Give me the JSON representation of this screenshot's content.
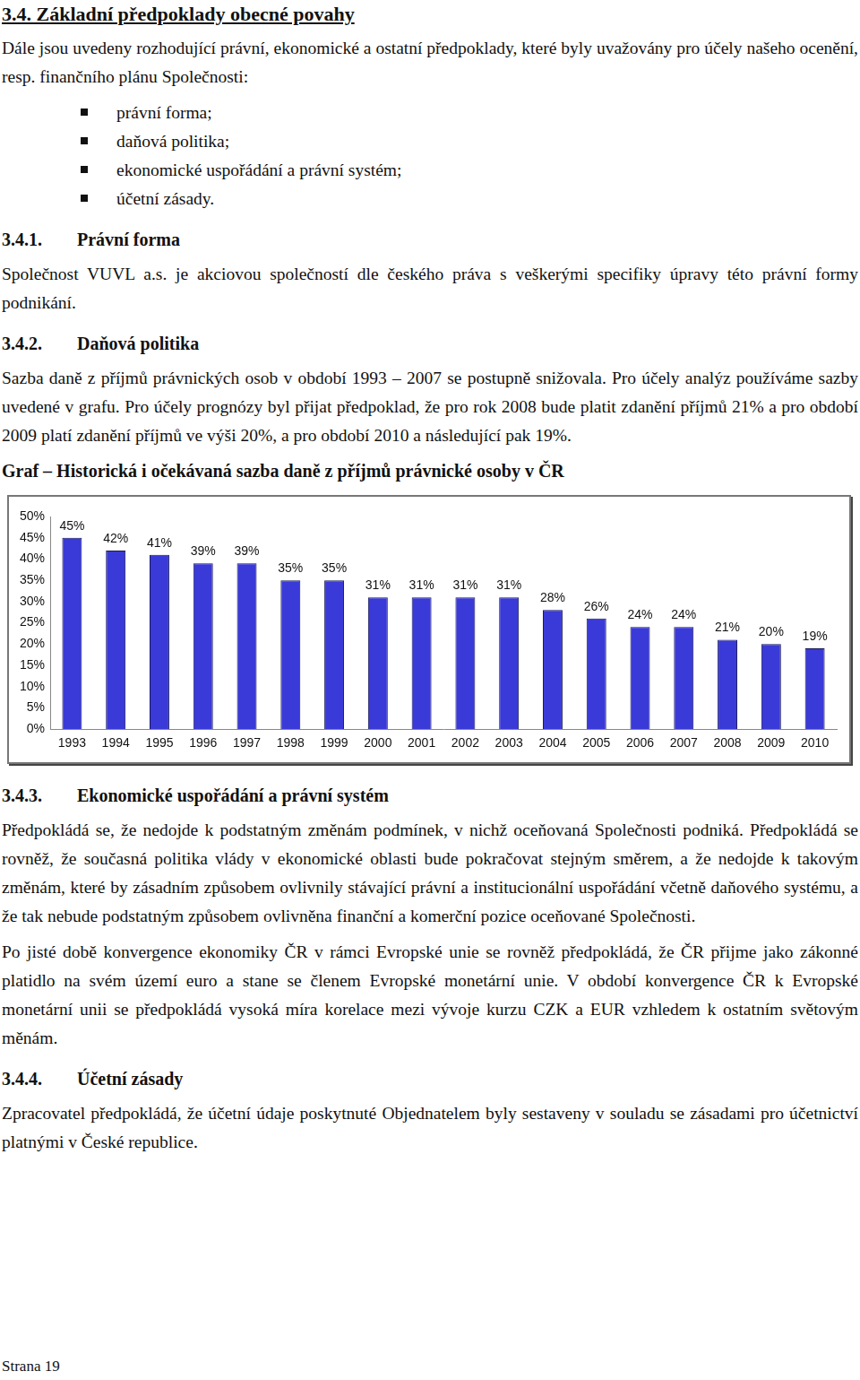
{
  "document": {
    "heading": "3.4. Základní předpoklady obecné povahy",
    "intro": "Dále jsou uvedeny rozhodující právní, ekonomické a ostatní předpoklady, které byly uvažovány pro účely našeho ocenění, resp. finančního plánu Společnosti:",
    "bullets": [
      "právní forma;",
      "daňová politika;",
      "ekonomické uspořádání a právní systém;",
      "účetní zásady."
    ],
    "sections": [
      {
        "number": "3.4.1.",
        "title": "Právní forma",
        "paragraphs": [
          "Společnost VUVL a.s. je akciovou společností dle českého práva s veškerými specifiky úpravy této právní formy podnikání."
        ]
      },
      {
        "number": "3.4.2.",
        "title": "Daňová politika",
        "paragraphs": [
          "Sazba daně z příjmů právnických osob v období 1993 – 2007 se postupně snižovala. Pro účely analýz používáme sazby uvedené v grafu. Pro účely prognózy byl přijat předpoklad, že pro rok 2008 bude platit zdanění příjmů 21% a pro období 2009 platí zdanění příjmů ve výši 20%, a pro období 2010 a následující pak 19%."
        ]
      },
      {
        "number": "3.4.3.",
        "title": "Ekonomické uspořádání a právní systém",
        "paragraphs": [
          "Předpokládá se, že nedojde k podstatným změnám podmínek, v nichž oceňovaná Společnosti podniká. Předpokládá se rovněž, že současná politika vlády v ekonomické oblasti bude pokračovat stejným směrem, a že nedojde k takovým změnám, které by zásadním způsobem ovlivnily stávající právní a institucionální uspořádání včetně daňového systému, a že tak nebude podstatným způsobem ovlivněna finanční a komerční pozice oceňované Společnosti.",
          "Po jisté době konvergence ekonomiky ČR v rámci Evropské unie se rovněž předpokládá, že ČR přijme jako zákonné platidlo na svém území euro a stane se členem Evropské monetární unie. V období konvergence ČR k Evropské monetární unii se předpokládá vysoká míra korelace mezi vývoje kurzu CZK a EUR vzhledem k ostatním světovým měnám."
        ]
      },
      {
        "number": "3.4.4.",
        "title": "Účetní zásady",
        "paragraphs": [
          "Zpracovatel předpokládá, že účetní údaje poskytnuté Objednatelem byly sestaveny v souladu se zásadami pro účetnictví platnými v České republice."
        ]
      }
    ],
    "footer": "Strana 19"
  },
  "chart_data": {
    "type": "bar",
    "title": "Graf – Historická i očekávaná sazba daně z příjmů právnické osoby v ČR",
    "categories": [
      "1993",
      "1994",
      "1995",
      "1996",
      "1997",
      "1998",
      "1999",
      "2000",
      "2001",
      "2002",
      "2003",
      "2004",
      "2005",
      "2006",
      "2007",
      "2008",
      "2009",
      "2010"
    ],
    "values": [
      45,
      42,
      41,
      39,
      39,
      35,
      35,
      31,
      31,
      31,
      31,
      28,
      26,
      24,
      24,
      21,
      20,
      19
    ],
    "value_labels": [
      "45%",
      "42%",
      "41%",
      "39%",
      "39%",
      "35%",
      "35%",
      "31%",
      "31%",
      "31%",
      "31%",
      "28%",
      "26%",
      "24%",
      "24%",
      "21%",
      "20%",
      "19%"
    ],
    "color": "#3a3ad8",
    "ylim": [
      0,
      50
    ],
    "yticks": [
      {
        "value": 0,
        "label": "0%"
      },
      {
        "value": 5,
        "label": "5%"
      },
      {
        "value": 10,
        "label": "10%"
      },
      {
        "value": 15,
        "label": "15%"
      },
      {
        "value": 20,
        "label": "20%"
      },
      {
        "value": 25,
        "label": "25%"
      },
      {
        "value": 30,
        "label": "30%"
      },
      {
        "value": 35,
        "label": "35%"
      },
      {
        "value": 40,
        "label": "40%"
      },
      {
        "value": 45,
        "label": "45%"
      },
      {
        "value": 50,
        "label": "50%"
      }
    ],
    "grid": false,
    "data_labels": true
  }
}
